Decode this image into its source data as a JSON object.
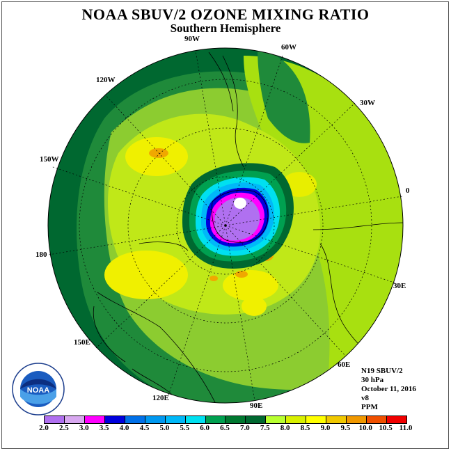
{
  "title": "NOAA SBUV/2 OZONE MIXING RATIO",
  "subtitle": "Southern Hemisphere",
  "longitude_labels": {
    "w90": "90W",
    "w60": "60W",
    "w30": "30W",
    "e0": "0",
    "w120": "120W",
    "w150": "150W",
    "d180": "180",
    "e150": "150E",
    "e120": "120E",
    "e90": "90E",
    "e60": "60E",
    "e30": "30E"
  },
  "info": {
    "instrument": "N19 SBUV/2",
    "level": "30 hPa",
    "date": "October 11, 2016",
    "version": "v8",
    "units": "PPM"
  },
  "logo_text": "NOAA",
  "legend": {
    "ticks": [
      "2.0",
      "2.5",
      "3.0",
      "3.5",
      "4.0",
      "4.5",
      "5.0",
      "5.5",
      "6.0",
      "6.5",
      "7.0",
      "7.5",
      "8.0",
      "8.5",
      "9.0",
      "9.5",
      "10.0",
      "10.5",
      "11.0"
    ],
    "colors": [
      "#b070f0",
      "#d8a8f0",
      "#ff00ff",
      "#0000dd",
      "#0070e8",
      "#0098f0",
      "#00b8f8",
      "#00e0f0",
      "#00a050",
      "#007830",
      "#006830",
      "#b8ff30",
      "#d8f000",
      "#ffff00",
      "#f0c800",
      "#f09800",
      "#f05000",
      "#f00000",
      "#805030"
    ]
  },
  "colors": {
    "ocean_far": "#006830",
    "mid": "#208838",
    "ring": "#88cc30",
    "light": "#b8e020",
    "yellow": "#e8f000",
    "hole": "#b070f0"
  }
}
